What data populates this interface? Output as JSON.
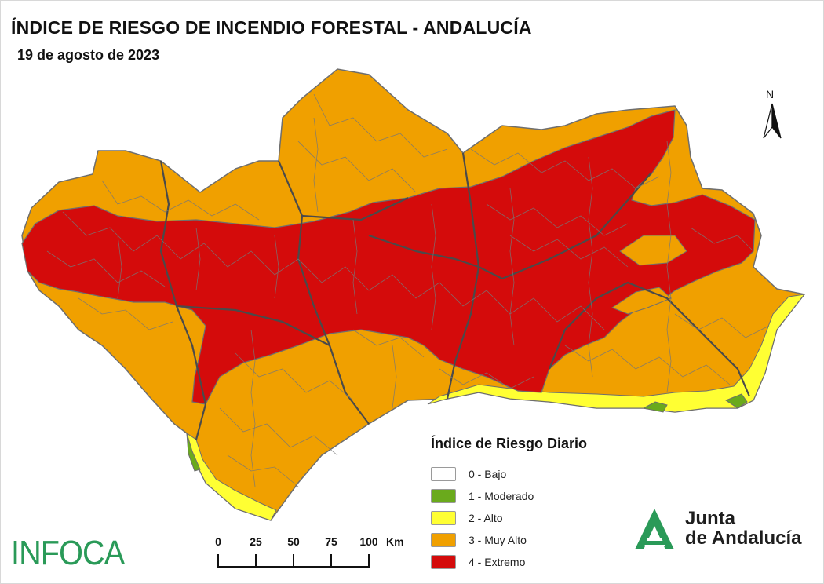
{
  "title": "ÍNDICE DE RIESGO DE INCENDIO FORESTAL - ANDALUCÍA",
  "date": "19 de agosto de 2023",
  "north_label": "N",
  "legend": {
    "title": "Índice de Riesgo Diario",
    "items": [
      {
        "label": "0 - Bajo",
        "color": "#ffffff"
      },
      {
        "label": "1 - Moderado",
        "color": "#6aaa1c"
      },
      {
        "label": "2 - Alto",
        "color": "#ffff33"
      },
      {
        "label": "3 - Muy Alto",
        "color": "#f0a000"
      },
      {
        "label": "4 - Extremo",
        "color": "#d40b0b"
      }
    ]
  },
  "scale": {
    "ticks": [
      "0",
      "25",
      "50",
      "75",
      "100"
    ],
    "units": "Km"
  },
  "logos": {
    "infoca": "INFOCA",
    "junta_line1": "Junta",
    "junta_line2": "de Andalucía"
  },
  "colors": {
    "muy_alto": "#f0a000",
    "extremo": "#d40b0b",
    "alto": "#ffff33",
    "moderado": "#6aaa1c",
    "border": "#6e6e6e",
    "brand_green": "#2a9a58"
  }
}
